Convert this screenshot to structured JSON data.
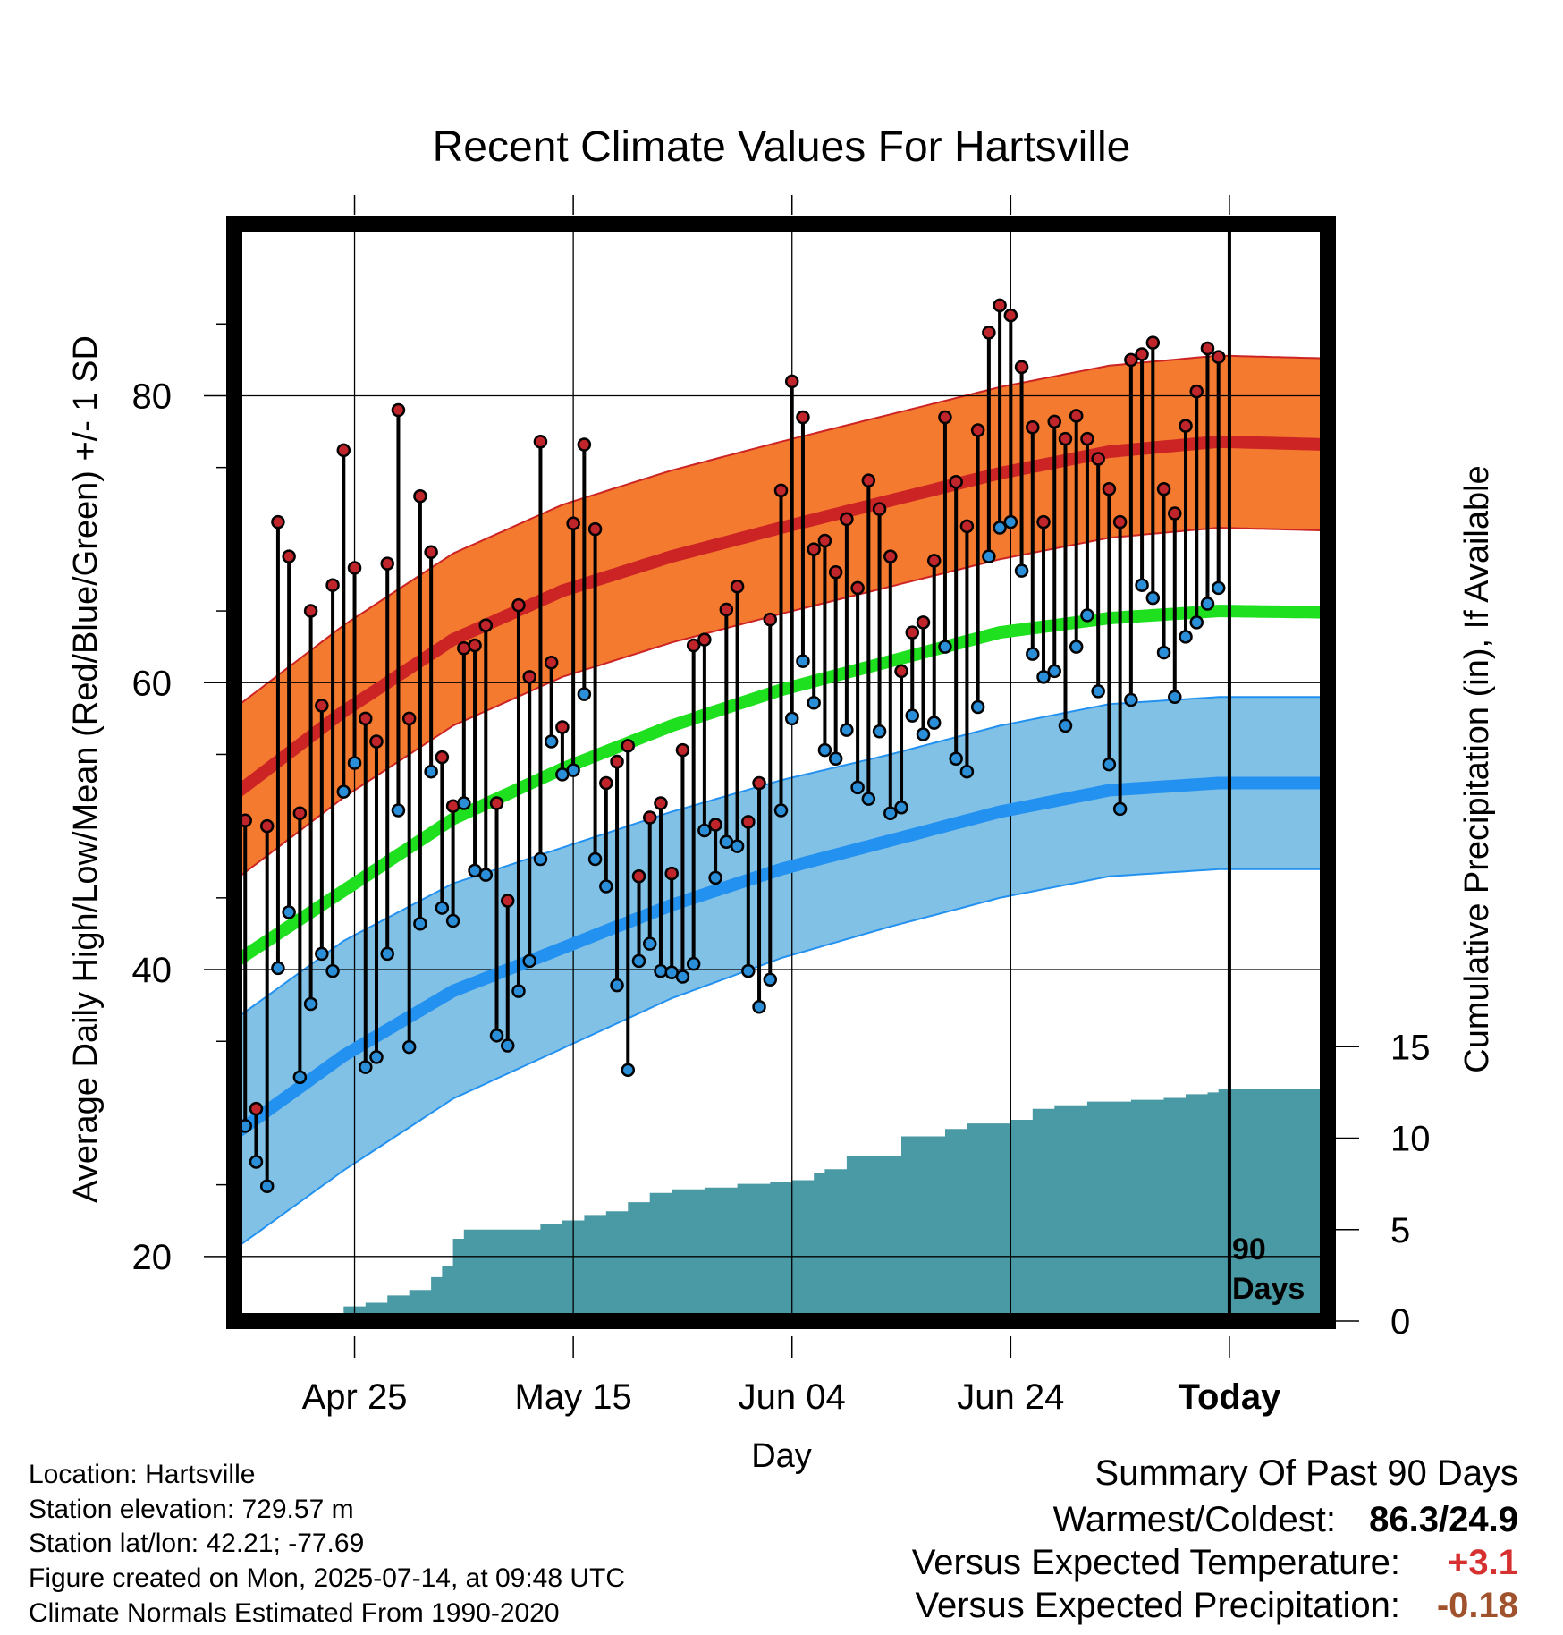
{
  "chart_data": {
    "type": "line",
    "title": "Recent Climate Values For Hartsville",
    "xlabel": "Day",
    "ylabel": "Average Daily High/Low/Mean (Red/Blue/Green) +/- 1 SD",
    "y2label": "Cumulative Precipitation (in), If Available",
    "x_ticks": [
      {
        "day": 10,
        "label": "Apr 25"
      },
      {
        "day": 30,
        "label": "May 15"
      },
      {
        "day": 50,
        "label": "Jun 04"
      },
      {
        "day": 70,
        "label": "Jun 24"
      },
      {
        "day": 90,
        "label": "Today"
      }
    ],
    "y_ticks": [
      20,
      40,
      60,
      80
    ],
    "y2_ticks": [
      0,
      5,
      10,
      15
    ],
    "xlim": [
      -1,
      99
    ],
    "ylim": [
      15.5,
      92
    ],
    "y2lim": [
      0,
      60
    ],
    "today_day": 90,
    "today_label": [
      "90",
      "Days"
    ],
    "grid": true,
    "normals": {
      "days": [
        -1,
        9,
        19,
        29,
        39,
        49,
        59,
        69,
        79,
        89,
        99
      ],
      "high": [
        52.2,
        58,
        63,
        66.4,
        68.8,
        70.8,
        72.7,
        74.6,
        76.1,
        76.8,
        76.6
      ],
      "high_sd": 6.0,
      "low": [
        28.5,
        34,
        38.5,
        41.5,
        44.5,
        47,
        49,
        51,
        52.5,
        53,
        53
      ],
      "low_sd": [
        8.0,
        8.0,
        7.5,
        7.0,
        6.5,
        6.2,
        6.0,
        6.0,
        6.0,
        6.0,
        6.0
      ],
      "mean": [
        40.5,
        45.5,
        50.5,
        54,
        57,
        59.5,
        61.5,
        63.5,
        64.5,
        65,
        64.9
      ]
    },
    "daily": {
      "start_day": 0,
      "high": [
        50.4,
        30.3,
        50.0,
        71.2,
        68.8,
        50.9,
        65.0,
        58.4,
        66.8,
        76.2,
        68.0,
        57.5,
        55.9,
        68.3,
        79.0,
        57.5,
        73.0,
        69.1,
        54.8,
        51.4,
        62.4,
        62.6,
        64.0,
        51.6,
        44.8,
        65.4,
        60.4,
        76.8,
        61.4,
        56.9,
        71.1,
        76.6,
        70.7,
        53.0,
        54.5,
        55.6,
        46.5,
        50.6,
        51.6,
        46.7,
        55.3,
        62.6,
        63.0,
        50.1,
        65.1,
        66.7,
        50.3,
        53.0,
        64.4,
        73.4,
        81.0,
        78.5,
        69.3,
        69.9,
        67.7,
        71.4,
        66.6,
        74.1,
        72.1,
        68.8,
        60.8,
        63.5,
        64.2,
        68.5,
        78.5,
        74.0,
        70.9,
        77.6,
        84.4,
        86.3,
        85.6,
        82.0,
        77.8,
        71.2,
        78.2,
        77.0,
        78.6,
        77.0,
        75.6,
        73.5,
        71.2,
        82.5,
        82.9,
        83.7,
        73.5,
        71.8,
        77.9,
        80.3,
        83.3,
        82.7
      ],
      "low": [
        29.1,
        26.6,
        24.9,
        40.1,
        44.0,
        32.5,
        37.6,
        41.1,
        39.9,
        52.4,
        54.4,
        33.2,
        33.9,
        41.1,
        51.1,
        34.6,
        43.2,
        53.8,
        44.3,
        43.4,
        51.6,
        46.9,
        46.6,
        35.4,
        34.7,
        38.5,
        40.6,
        47.7,
        55.9,
        53.6,
        53.9,
        59.2,
        47.7,
        45.8,
        38.9,
        33.0,
        40.6,
        41.8,
        39.9,
        39.8,
        39.5,
        40.4,
        49.7,
        46.4,
        48.9,
        48.6,
        39.9,
        37.4,
        39.3,
        51.1,
        57.5,
        61.5,
        58.6,
        55.3,
        54.7,
        56.7,
        52.7,
        51.9,
        56.6,
        50.9,
        51.3,
        57.7,
        56.4,
        57.2,
        62.5,
        54.7,
        53.8,
        58.3,
        68.8,
        70.8,
        71.2,
        67.8,
        62.0,
        60.4,
        60.8,
        57.0,
        62.5,
        64.7,
        59.4,
        54.3,
        51.2,
        58.8,
        66.8,
        65.9,
        62.1,
        59.0,
        63.2,
        64.2,
        65.5,
        66.6
      ]
    },
    "precip": {
      "days": [
        -1,
        5,
        9,
        11,
        13,
        15,
        17,
        18,
        19,
        20,
        21,
        27,
        29,
        31,
        33,
        35,
        37,
        39,
        42,
        45,
        48,
        50,
        52,
        53,
        55,
        60,
        64,
        66,
        70,
        72,
        74,
        77,
        81,
        84,
        86,
        88,
        89,
        99
      ],
      "values": [
        0,
        0.4,
        0.8,
        1.0,
        1.4,
        1.7,
        2.4,
        3.0,
        4.5,
        5.0,
        5.0,
        5.3,
        5.5,
        5.8,
        6.0,
        6.5,
        7.0,
        7.2,
        7.3,
        7.5,
        7.6,
        7.7,
        8.1,
        8.3,
        9.0,
        10.1,
        10.5,
        10.8,
        11.0,
        11.6,
        11.8,
        12.0,
        12.1,
        12.2,
        12.4,
        12.5,
        12.7,
        12.6
      ]
    },
    "colors": {
      "high_band": "#f47a30",
      "high_line": "#cc2424",
      "low_band": "#82c1e6",
      "low_line": "#2291f0",
      "mean_line": "#1fe01f",
      "precip": "#4a9aa5",
      "high_dot": "#c0252b",
      "low_dot": "#2a8fd8"
    }
  },
  "footer": {
    "location": "Location: Hartsville",
    "elevation": "Station elevation: 729.57 m",
    "latlon": "Station lat/lon: 42.21; -77.69",
    "created": "Figure created on Mon, 2025-07-14, at 09:48 UTC",
    "normals": "Climate Normals Estimated From 1990-2020"
  },
  "summary": {
    "heading": "Summary Of Past 90 Days",
    "warm_cold_label": "Warmest/Coldest:",
    "warm_cold_value": "86.3/24.9",
    "temp_label": "Versus Expected Temperature:",
    "temp_value": "+3.1",
    "temp_color": "#d63030",
    "precip_label": "Versus Expected Precipitation:",
    "precip_value": "-0.18",
    "precip_color": "#a0522d"
  }
}
